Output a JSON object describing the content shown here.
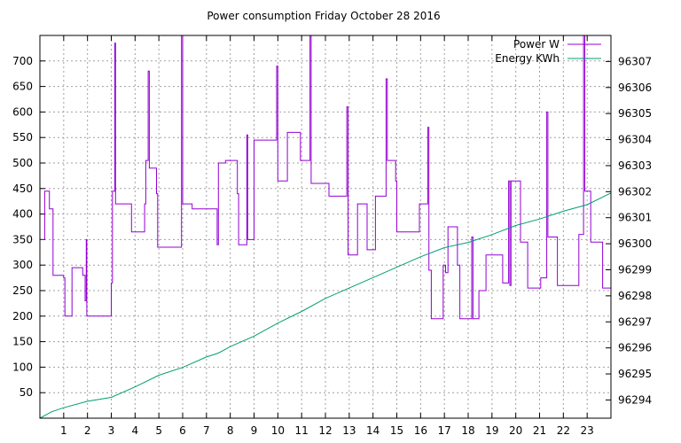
{
  "chart_data": {
    "type": "line",
    "title": "Power consumption Friday October 28 2016",
    "xlabel": "",
    "ylabel": "",
    "y2label": "",
    "xlim": [
      0,
      24
    ],
    "ylim": [
      0,
      750
    ],
    "y2lim": [
      96293.3,
      96308
    ],
    "grid": true,
    "legend_position": "top-right",
    "x_ticks": [
      1,
      2,
      3,
      4,
      5,
      6,
      7,
      8,
      9,
      10,
      11,
      12,
      13,
      14,
      15,
      16,
      17,
      18,
      19,
      20,
      21,
      22,
      23
    ],
    "y_ticks": [
      50,
      100,
      150,
      200,
      250,
      300,
      350,
      400,
      450,
      500,
      550,
      600,
      650,
      700
    ],
    "y2_ticks": [
      96294,
      96295,
      96296,
      96297,
      96298,
      96299,
      96300,
      96301,
      96302,
      96303,
      96304,
      96305,
      96306,
      96307
    ],
    "series": [
      {
        "name": "Power W",
        "axis": "left",
        "color": "#9400d3",
        "step": true,
        "points": [
          [
            0.0,
            350
          ],
          [
            0.2,
            350
          ],
          [
            0.2,
            445
          ],
          [
            0.4,
            445
          ],
          [
            0.4,
            410
          ],
          [
            0.55,
            410
          ],
          [
            0.55,
            280
          ],
          [
            1.0,
            280
          ],
          [
            1.0,
            275
          ],
          [
            1.05,
            275
          ],
          [
            1.05,
            200
          ],
          [
            1.35,
            200
          ],
          [
            1.35,
            295
          ],
          [
            1.8,
            295
          ],
          [
            1.8,
            280
          ],
          [
            1.9,
            280
          ],
          [
            1.9,
            230
          ],
          [
            1.95,
            230
          ],
          [
            1.95,
            350
          ],
          [
            1.97,
            350
          ],
          [
            1.97,
            200
          ],
          [
            3.0,
            200
          ],
          [
            3.0,
            265
          ],
          [
            3.05,
            265
          ],
          [
            3.05,
            445
          ],
          [
            3.15,
            445
          ],
          [
            3.15,
            735
          ],
          [
            3.18,
            735
          ],
          [
            3.18,
            420
          ],
          [
            3.85,
            420
          ],
          [
            3.85,
            365
          ],
          [
            4.4,
            365
          ],
          [
            4.4,
            420
          ],
          [
            4.45,
            420
          ],
          [
            4.45,
            505
          ],
          [
            4.55,
            505
          ],
          [
            4.55,
            680
          ],
          [
            4.6,
            680
          ],
          [
            4.6,
            490
          ],
          [
            4.9,
            490
          ],
          [
            4.9,
            440
          ],
          [
            4.95,
            440
          ],
          [
            4.95,
            335
          ],
          [
            5.95,
            335
          ],
          [
            5.95,
            750
          ],
          [
            6.0,
            750
          ],
          [
            6.0,
            420
          ],
          [
            6.4,
            420
          ],
          [
            6.4,
            410
          ],
          [
            7.45,
            410
          ],
          [
            7.45,
            340
          ],
          [
            7.5,
            340
          ],
          [
            7.5,
            500
          ],
          [
            7.8,
            500
          ],
          [
            7.8,
            505
          ],
          [
            8.3,
            505
          ],
          [
            8.3,
            440
          ],
          [
            8.35,
            440
          ],
          [
            8.35,
            340
          ],
          [
            8.7,
            340
          ],
          [
            8.7,
            555
          ],
          [
            8.73,
            555
          ],
          [
            8.73,
            350
          ],
          [
            9.0,
            350
          ],
          [
            9.0,
            545
          ],
          [
            9.95,
            545
          ],
          [
            9.95,
            690
          ],
          [
            10.0,
            690
          ],
          [
            10.0,
            465
          ],
          [
            10.4,
            465
          ],
          [
            10.4,
            560
          ],
          [
            10.95,
            560
          ],
          [
            10.95,
            505
          ],
          [
            11.35,
            505
          ],
          [
            11.35,
            750
          ],
          [
            11.4,
            750
          ],
          [
            11.4,
            460
          ],
          [
            12.15,
            460
          ],
          [
            12.15,
            435
          ],
          [
            12.9,
            435
          ],
          [
            12.9,
            610
          ],
          [
            12.95,
            610
          ],
          [
            12.95,
            320
          ],
          [
            13.35,
            320
          ],
          [
            13.35,
            420
          ],
          [
            13.75,
            420
          ],
          [
            13.75,
            330
          ],
          [
            14.1,
            330
          ],
          [
            14.1,
            435
          ],
          [
            14.55,
            435
          ],
          [
            14.55,
            665
          ],
          [
            14.6,
            665
          ],
          [
            14.6,
            505
          ],
          [
            14.95,
            505
          ],
          [
            14.95,
            465
          ],
          [
            15.0,
            465
          ],
          [
            15.0,
            365
          ],
          [
            15.95,
            365
          ],
          [
            15.95,
            420
          ],
          [
            16.3,
            420
          ],
          [
            16.3,
            570
          ],
          [
            16.35,
            570
          ],
          [
            16.35,
            290
          ],
          [
            16.45,
            290
          ],
          [
            16.45,
            195
          ],
          [
            16.95,
            195
          ],
          [
            16.95,
            300
          ],
          [
            17.05,
            300
          ],
          [
            17.05,
            285
          ],
          [
            17.15,
            285
          ],
          [
            17.15,
            375
          ],
          [
            17.55,
            375
          ],
          [
            17.55,
            300
          ],
          [
            17.65,
            300
          ],
          [
            17.65,
            195
          ],
          [
            18.15,
            195
          ],
          [
            18.15,
            355
          ],
          [
            18.2,
            355
          ],
          [
            18.2,
            195
          ],
          [
            18.45,
            195
          ],
          [
            18.45,
            250
          ],
          [
            18.75,
            250
          ],
          [
            18.75,
            320
          ],
          [
            19.45,
            320
          ],
          [
            19.45,
            265
          ],
          [
            19.7,
            265
          ],
          [
            19.7,
            465
          ],
          [
            19.75,
            465
          ],
          [
            19.75,
            260
          ],
          [
            19.8,
            260
          ],
          [
            19.8,
            465
          ],
          [
            20.2,
            465
          ],
          [
            20.2,
            345
          ],
          [
            20.5,
            345
          ],
          [
            20.5,
            255
          ],
          [
            21.05,
            255
          ],
          [
            21.05,
            275
          ],
          [
            21.3,
            275
          ],
          [
            21.3,
            600
          ],
          [
            21.35,
            600
          ],
          [
            21.35,
            355
          ],
          [
            21.75,
            355
          ],
          [
            21.75,
            260
          ],
          [
            22.65,
            260
          ],
          [
            22.65,
            360
          ],
          [
            22.85,
            360
          ],
          [
            22.85,
            750
          ],
          [
            22.9,
            750
          ],
          [
            22.9,
            445
          ],
          [
            23.15,
            445
          ],
          [
            23.15,
            345
          ],
          [
            23.65,
            345
          ],
          [
            23.65,
            255
          ],
          [
            24.0,
            255
          ]
        ]
      },
      {
        "name": "Energy KWh",
        "axis": "right",
        "color": "#009e73",
        "step": false,
        "points": [
          [
            0.0,
            96293.3
          ],
          [
            0.5,
            96293.55
          ],
          [
            1.0,
            96293.7
          ],
          [
            2.0,
            96293.95
          ],
          [
            3.0,
            96294.1
          ],
          [
            4.0,
            96294.5
          ],
          [
            5.0,
            96294.95
          ],
          [
            6.0,
            96295.25
          ],
          [
            7.0,
            96295.65
          ],
          [
            7.5,
            96295.8
          ],
          [
            8.0,
            96296.05
          ],
          [
            9.0,
            96296.45
          ],
          [
            10.0,
            96296.95
          ],
          [
            11.0,
            96297.4
          ],
          [
            12.0,
            96297.9
          ],
          [
            13.0,
            96298.3
          ],
          [
            14.0,
            96298.7
          ],
          [
            15.0,
            96299.1
          ],
          [
            16.0,
            96299.5
          ],
          [
            17.0,
            96299.85
          ],
          [
            18.0,
            96300.05
          ],
          [
            19.0,
            96300.35
          ],
          [
            20.0,
            96300.7
          ],
          [
            21.0,
            96300.95
          ],
          [
            22.0,
            96301.25
          ],
          [
            23.0,
            96301.5
          ],
          [
            24.0,
            96301.95
          ]
        ]
      }
    ]
  }
}
